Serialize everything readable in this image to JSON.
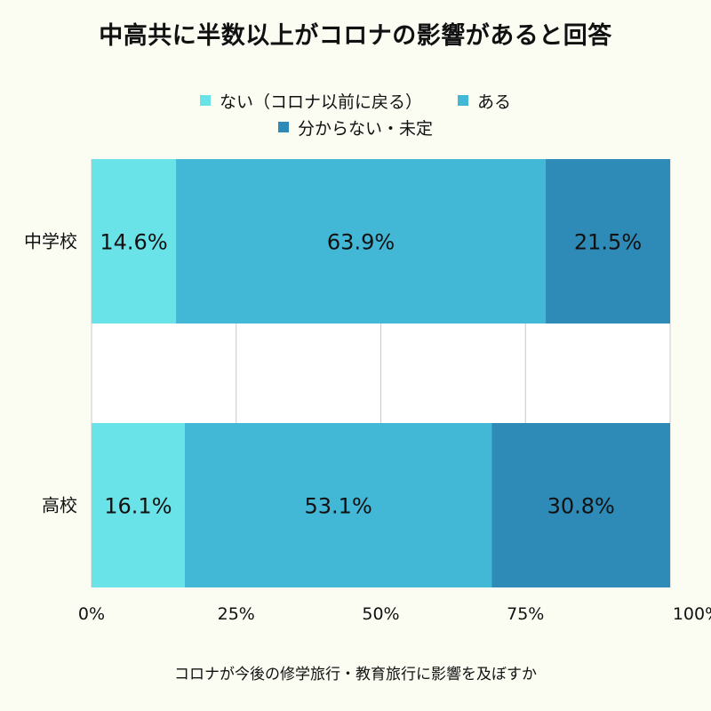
{
  "title": "中高共に半数以上がコロナの影響があると回答",
  "footer": "コロナが今後の修学旅行・教育旅行に影響を及ぼすか",
  "legend": [
    {
      "label": "ない（コロナ以前に戻る）",
      "color": "#6ae3e8"
    },
    {
      "label": "ある",
      "color": "#42b7d6"
    },
    {
      "label": "分からない・未定",
      "color": "#2e8ab6"
    }
  ],
  "chart_data": {
    "type": "bar",
    "orientation": "horizontal",
    "stacked": true,
    "categories": [
      "中学校",
      "高校"
    ],
    "series": [
      {
        "name": "ない（コロナ以前に戻る）",
        "values": [
          14.6,
          16.1
        ],
        "color": "#6ae3e8"
      },
      {
        "name": "ある",
        "values": [
          63.9,
          53.1
        ],
        "color": "#42b7d6"
      },
      {
        "name": "分からない・未定",
        "values": [
          21.5,
          30.8
        ],
        "color": "#2e8ab6"
      }
    ],
    "data_labels": [
      [
        "14.6%",
        "63.9%",
        "21.5%"
      ],
      [
        "16.1%",
        "53.1%",
        "30.8%"
      ]
    ],
    "x_ticks": [
      "0%",
      "25%",
      "50%",
      "75%",
      "100%"
    ],
    "xlim": [
      0,
      100
    ],
    "grid": true,
    "legend_position": "top"
  }
}
